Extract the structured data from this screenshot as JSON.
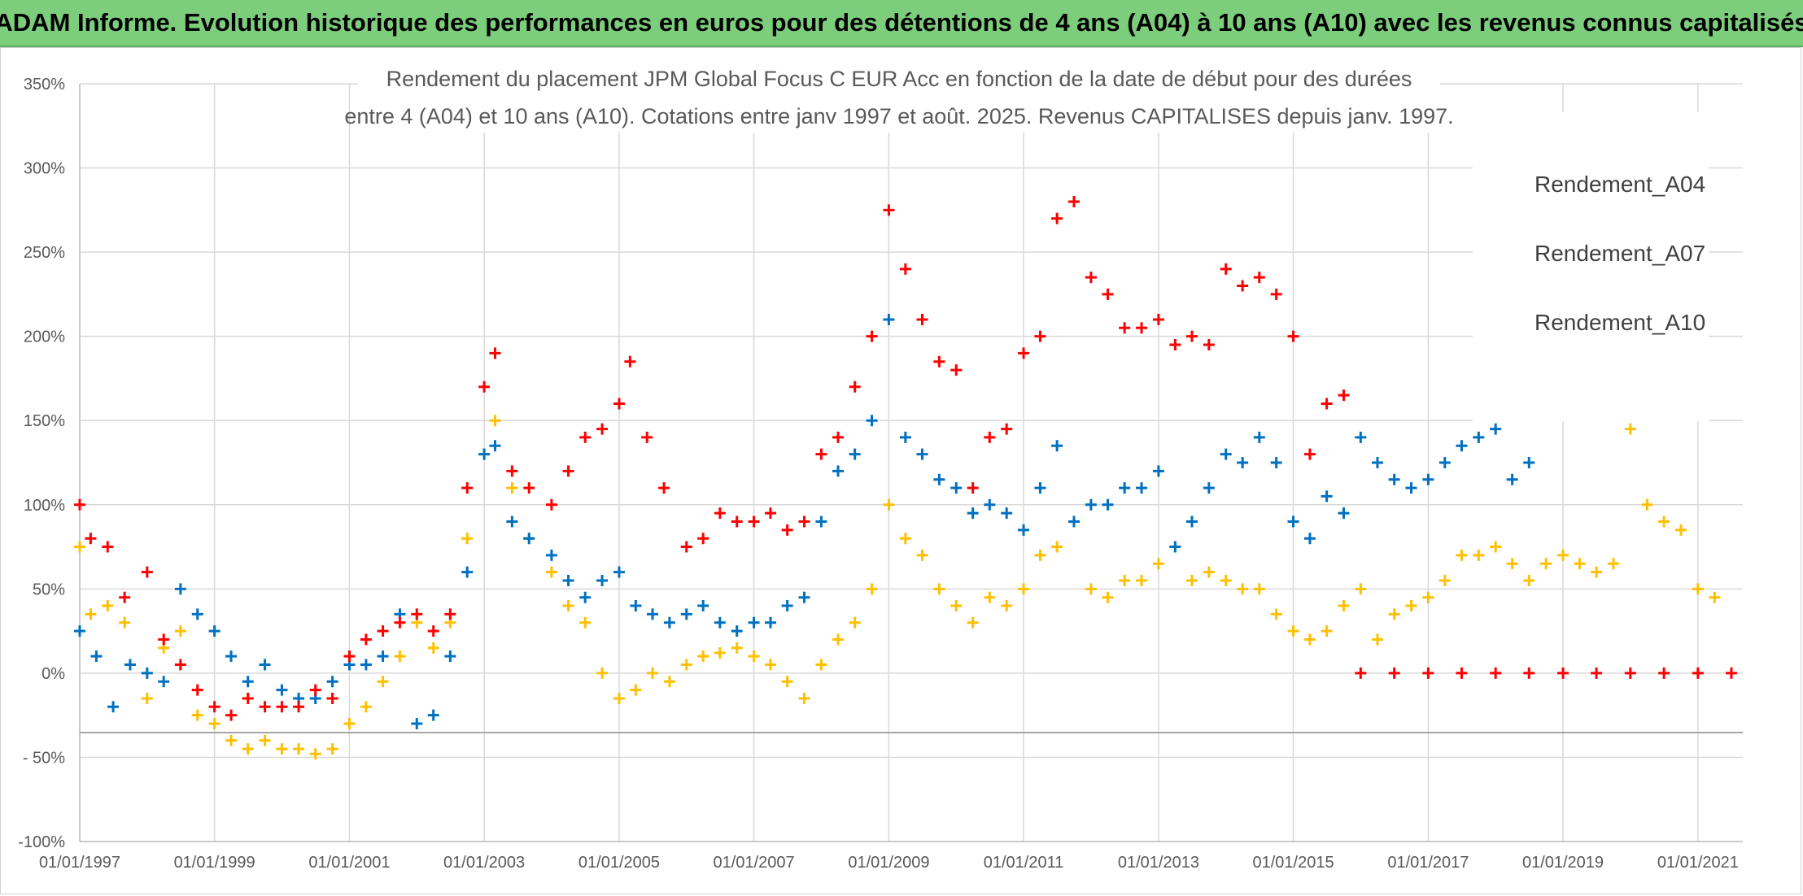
{
  "banner": {
    "title": "ADAM Informe. Evolution historique des performances en euros pour des détentions de 4 ans (A04) à 10 ans (A10) avec les revenus connus capitalisés"
  },
  "chart_data": {
    "type": "scatter",
    "title_lines": [
      "Rendement du placement JPM Global Focus C EUR Acc en fonction de la date de début pour des durées",
      "entre 4 (A04) et 10 ans (A10). Cotations entre janv 1997 et août. 2025. Revenus CAPITALISES depuis janv. 1997."
    ],
    "xlabel": "",
    "ylabel": "",
    "x_tick_labels": [
      "01/01/1997",
      "01/01/1999",
      "01/01/2001",
      "01/01/2003",
      "01/01/2005",
      "01/01/2007",
      "01/01/2009",
      "01/01/2011",
      "01/01/2013",
      "01/01/2015",
      "01/01/2017",
      "01/01/2019",
      "01/01/2021"
    ],
    "xlim": [
      "1997-01-01",
      "2021-09-01"
    ],
    "y_tick_labels": [
      "350%",
      "300%",
      "250%",
      "200%",
      "150%",
      "100%",
      "50%",
      "0%",
      "- 50%",
      "-100%"
    ],
    "ylim": [
      -100,
      350
    ],
    "y_unit": "%",
    "grid": true,
    "legend_position": "top-right",
    "series": [
      {
        "name": "Rendement_A04",
        "color": "#FFC000",
        "marker": "+",
        "points": [
          [
            "1997-01-01",
            75
          ],
          [
            "1997-03-01",
            35
          ],
          [
            "1997-06-01",
            40
          ],
          [
            "1997-09-01",
            30
          ],
          [
            "1998-01-01",
            -15
          ],
          [
            "1998-04-01",
            15
          ],
          [
            "1998-07-01",
            25
          ],
          [
            "1998-10-01",
            -25
          ],
          [
            "1999-01-01",
            -30
          ],
          [
            "1999-04-01",
            -40
          ],
          [
            "1999-07-01",
            -45
          ],
          [
            "1999-10-01",
            -40
          ],
          [
            "2000-01-01",
            -45
          ],
          [
            "2000-04-01",
            -45
          ],
          [
            "2000-07-01",
            -48
          ],
          [
            "2000-10-01",
            -45
          ],
          [
            "2001-01-01",
            -30
          ],
          [
            "2001-04-01",
            -20
          ],
          [
            "2001-07-01",
            -5
          ],
          [
            "2001-10-01",
            10
          ],
          [
            "2002-01-01",
            30
          ],
          [
            "2002-04-01",
            15
          ],
          [
            "2002-07-01",
            30
          ],
          [
            "2002-10-01",
            80
          ],
          [
            "2003-01-01",
            130
          ],
          [
            "2003-03-01",
            150
          ],
          [
            "2003-06-01",
            110
          ],
          [
            "2003-09-01",
            80
          ],
          [
            "2004-01-01",
            60
          ],
          [
            "2004-04-01",
            40
          ],
          [
            "2004-07-01",
            30
          ],
          [
            "2004-10-01",
            0
          ],
          [
            "2005-01-01",
            -15
          ],
          [
            "2005-04-01",
            -10
          ],
          [
            "2005-07-01",
            0
          ],
          [
            "2005-10-01",
            -5
          ],
          [
            "2006-01-01",
            5
          ],
          [
            "2006-04-01",
            10
          ],
          [
            "2006-07-01",
            12
          ],
          [
            "2006-10-01",
            15
          ],
          [
            "2007-01-01",
            10
          ],
          [
            "2007-04-01",
            5
          ],
          [
            "2007-07-01",
            -5
          ],
          [
            "2007-10-01",
            -15
          ],
          [
            "2008-01-01",
            5
          ],
          [
            "2008-04-01",
            20
          ],
          [
            "2008-07-01",
            30
          ],
          [
            "2008-10-01",
            50
          ],
          [
            "2009-01-01",
            100
          ],
          [
            "2009-04-01",
            80
          ],
          [
            "2009-07-01",
            70
          ],
          [
            "2009-10-01",
            50
          ],
          [
            "2010-01-01",
            40
          ],
          [
            "2010-04-01",
            30
          ],
          [
            "2010-07-01",
            45
          ],
          [
            "2010-10-01",
            40
          ],
          [
            "2011-01-01",
            50
          ],
          [
            "2011-04-01",
            70
          ],
          [
            "2011-07-01",
            75
          ],
          [
            "2011-10-01",
            90
          ],
          [
            "2012-01-01",
            50
          ],
          [
            "2012-04-01",
            45
          ],
          [
            "2012-07-01",
            55
          ],
          [
            "2012-10-01",
            55
          ],
          [
            "2013-01-01",
            65
          ],
          [
            "2013-04-01",
            75
          ],
          [
            "2013-07-01",
            55
          ],
          [
            "2013-10-01",
            60
          ],
          [
            "2014-01-01",
            55
          ],
          [
            "2014-04-01",
            50
          ],
          [
            "2014-07-01",
            50
          ],
          [
            "2014-10-01",
            35
          ],
          [
            "2015-01-01",
            25
          ],
          [
            "2015-04-01",
            20
          ],
          [
            "2015-07-01",
            25
          ],
          [
            "2015-10-01",
            40
          ],
          [
            "2016-01-01",
            50
          ],
          [
            "2016-04-01",
            20
          ],
          [
            "2016-07-01",
            35
          ],
          [
            "2016-10-01",
            40
          ],
          [
            "2017-01-01",
            45
          ],
          [
            "2017-04-01",
            55
          ],
          [
            "2017-07-01",
            70
          ],
          [
            "2017-10-01",
            70
          ],
          [
            "2018-01-01",
            75
          ],
          [
            "2018-04-01",
            65
          ],
          [
            "2018-07-01",
            55
          ],
          [
            "2018-10-01",
            65
          ],
          [
            "2019-01-01",
            70
          ],
          [
            "2019-04-01",
            65
          ],
          [
            "2019-07-01",
            60
          ],
          [
            "2019-10-01",
            65
          ],
          [
            "2020-01-01",
            145
          ],
          [
            "2020-04-01",
            100
          ],
          [
            "2020-07-01",
            90
          ],
          [
            "2020-10-01",
            85
          ],
          [
            "2021-01-01",
            50
          ],
          [
            "2021-04-01",
            45
          ]
        ]
      },
      {
        "name": "Rendement_A07",
        "color": "#0070C0",
        "marker": "+",
        "points": [
          [
            "1997-01-01",
            25
          ],
          [
            "1997-04-01",
            10
          ],
          [
            "1997-07-01",
            -20
          ],
          [
            "1997-10-01",
            5
          ],
          [
            "1998-01-01",
            0
          ],
          [
            "1998-04-01",
            -5
          ],
          [
            "1998-07-01",
            50
          ],
          [
            "1998-10-01",
            35
          ],
          [
            "1999-01-01",
            25
          ],
          [
            "1999-04-01",
            10
          ],
          [
            "1999-07-01",
            -5
          ],
          [
            "1999-10-01",
            5
          ],
          [
            "2000-01-01",
            -10
          ],
          [
            "2000-04-01",
            -15
          ],
          [
            "2000-07-01",
            -15
          ],
          [
            "2000-10-01",
            -5
          ],
          [
            "2001-01-01",
            5
          ],
          [
            "2001-04-01",
            5
          ],
          [
            "2001-07-01",
            10
          ],
          [
            "2001-10-01",
            35
          ],
          [
            "2002-01-01",
            -30
          ],
          [
            "2002-04-01",
            -25
          ],
          [
            "2002-07-01",
            10
          ],
          [
            "2002-10-01",
            60
          ],
          [
            "2003-01-01",
            130
          ],
          [
            "2003-03-01",
            135
          ],
          [
            "2003-06-01",
            90
          ],
          [
            "2003-09-01",
            80
          ],
          [
            "2004-01-01",
            70
          ],
          [
            "2004-04-01",
            55
          ],
          [
            "2004-07-01",
            45
          ],
          [
            "2004-10-01",
            55
          ],
          [
            "2005-01-01",
            60
          ],
          [
            "2005-04-01",
            40
          ],
          [
            "2005-07-01",
            35
          ],
          [
            "2005-10-01",
            30
          ],
          [
            "2006-01-01",
            35
          ],
          [
            "2006-04-01",
            40
          ],
          [
            "2006-07-01",
            30
          ],
          [
            "2006-10-01",
            25
          ],
          [
            "2007-01-01",
            30
          ],
          [
            "2007-04-01",
            30
          ],
          [
            "2007-07-01",
            40
          ],
          [
            "2007-10-01",
            45
          ],
          [
            "2008-01-01",
            90
          ],
          [
            "2008-04-01",
            120
          ],
          [
            "2008-07-01",
            130
          ],
          [
            "2008-10-01",
            150
          ],
          [
            "2009-01-01",
            210
          ],
          [
            "2009-04-01",
            140
          ],
          [
            "2009-07-01",
            130
          ],
          [
            "2009-10-01",
            115
          ],
          [
            "2010-01-01",
            110
          ],
          [
            "2010-04-01",
            95
          ],
          [
            "2010-07-01",
            100
          ],
          [
            "2010-10-01",
            95
          ],
          [
            "2011-01-01",
            85
          ],
          [
            "2011-04-01",
            110
          ],
          [
            "2011-07-01",
            135
          ],
          [
            "2011-10-01",
            90
          ],
          [
            "2012-01-01",
            100
          ],
          [
            "2012-04-01",
            100
          ],
          [
            "2012-07-01",
            110
          ],
          [
            "2012-10-01",
            110
          ],
          [
            "2013-01-01",
            120
          ],
          [
            "2013-04-01",
            75
          ],
          [
            "2013-07-01",
            90
          ],
          [
            "2013-10-01",
            110
          ],
          [
            "2014-01-01",
            130
          ],
          [
            "2014-04-01",
            125
          ],
          [
            "2014-07-01",
            140
          ],
          [
            "2014-10-01",
            125
          ],
          [
            "2015-01-01",
            90
          ],
          [
            "2015-04-01",
            80
          ],
          [
            "2015-07-01",
            105
          ],
          [
            "2015-10-01",
            95
          ],
          [
            "2016-01-01",
            140
          ],
          [
            "2016-04-01",
            125
          ],
          [
            "2016-07-01",
            115
          ],
          [
            "2016-10-01",
            110
          ],
          [
            "2017-01-01",
            115
          ],
          [
            "2017-04-01",
            125
          ],
          [
            "2017-07-01",
            135
          ],
          [
            "2017-10-01",
            140
          ],
          [
            "2018-01-01",
            145
          ],
          [
            "2018-04-01",
            115
          ],
          [
            "2018-07-01",
            125
          ]
        ]
      },
      {
        "name": "Rendement_A10",
        "color": "#FF0000",
        "marker": "+",
        "points": [
          [
            "1997-01-01",
            100
          ],
          [
            "1997-03-01",
            80
          ],
          [
            "1997-06-01",
            75
          ],
          [
            "1997-09-01",
            45
          ],
          [
            "1998-01-01",
            60
          ],
          [
            "1998-04-01",
            20
          ],
          [
            "1998-07-01",
            5
          ],
          [
            "1998-10-01",
            -10
          ],
          [
            "1999-01-01",
            -20
          ],
          [
            "1999-04-01",
            -25
          ],
          [
            "1999-07-01",
            -15
          ],
          [
            "1999-10-01",
            -20
          ],
          [
            "2000-01-01",
            -20
          ],
          [
            "2000-04-01",
            -20
          ],
          [
            "2000-07-01",
            -10
          ],
          [
            "2000-10-01",
            -15
          ],
          [
            "2001-01-01",
            10
          ],
          [
            "2001-04-01",
            20
          ],
          [
            "2001-07-01",
            25
          ],
          [
            "2001-10-01",
            30
          ],
          [
            "2002-01-01",
            35
          ],
          [
            "2002-04-01",
            25
          ],
          [
            "2002-07-01",
            35
          ],
          [
            "2002-10-01",
            110
          ],
          [
            "2003-01-01",
            170
          ],
          [
            "2003-03-01",
            190
          ],
          [
            "2003-06-01",
            120
          ],
          [
            "2003-09-01",
            110
          ],
          [
            "2004-01-01",
            100
          ],
          [
            "2004-04-01",
            120
          ],
          [
            "2004-07-01",
            140
          ],
          [
            "2004-10-01",
            145
          ],
          [
            "2005-01-01",
            160
          ],
          [
            "2005-03-01",
            185
          ],
          [
            "2005-06-01",
            140
          ],
          [
            "2005-09-01",
            110
          ],
          [
            "2006-01-01",
            75
          ],
          [
            "2006-04-01",
            80
          ],
          [
            "2006-07-01",
            95
          ],
          [
            "2006-10-01",
            90
          ],
          [
            "2007-01-01",
            90
          ],
          [
            "2007-04-01",
            95
          ],
          [
            "2007-07-01",
            85
          ],
          [
            "2007-10-01",
            90
          ],
          [
            "2008-01-01",
            130
          ],
          [
            "2008-04-01",
            140
          ],
          [
            "2008-07-01",
            170
          ],
          [
            "2008-10-01",
            200
          ],
          [
            "2009-01-01",
            275
          ],
          [
            "2009-04-01",
            240
          ],
          [
            "2009-07-01",
            210
          ],
          [
            "2009-10-01",
            185
          ],
          [
            "2010-01-01",
            180
          ],
          [
            "2010-04-01",
            110
          ],
          [
            "2010-07-01",
            140
          ],
          [
            "2010-10-01",
            145
          ],
          [
            "2011-01-01",
            190
          ],
          [
            "2011-04-01",
            200
          ],
          [
            "2011-07-01",
            270
          ],
          [
            "2011-10-01",
            280
          ],
          [
            "2012-01-01",
            235
          ],
          [
            "2012-04-01",
            225
          ],
          [
            "2012-07-01",
            205
          ],
          [
            "2012-10-01",
            205
          ],
          [
            "2013-01-01",
            210
          ],
          [
            "2013-04-01",
            195
          ],
          [
            "2013-07-01",
            200
          ],
          [
            "2013-10-01",
            195
          ],
          [
            "2014-01-01",
            240
          ],
          [
            "2014-04-01",
            230
          ],
          [
            "2014-07-01",
            235
          ],
          [
            "2014-10-01",
            225
          ],
          [
            "2015-01-01",
            200
          ],
          [
            "2015-04-01",
            130
          ],
          [
            "2015-07-01",
            160
          ],
          [
            "2015-10-01",
            165
          ],
          [
            "2016-01-01",
            0
          ],
          [
            "2016-07-01",
            0
          ],
          [
            "2017-01-01",
            0
          ],
          [
            "2017-07-01",
            0
          ],
          [
            "2018-01-01",
            0
          ],
          [
            "2018-07-01",
            0
          ],
          [
            "2019-01-01",
            0
          ],
          [
            "2019-07-01",
            0
          ],
          [
            "2020-01-01",
            0
          ],
          [
            "2020-07-01",
            0
          ],
          [
            "2021-01-01",
            0
          ],
          [
            "2021-07-01",
            0
          ]
        ]
      }
    ]
  }
}
